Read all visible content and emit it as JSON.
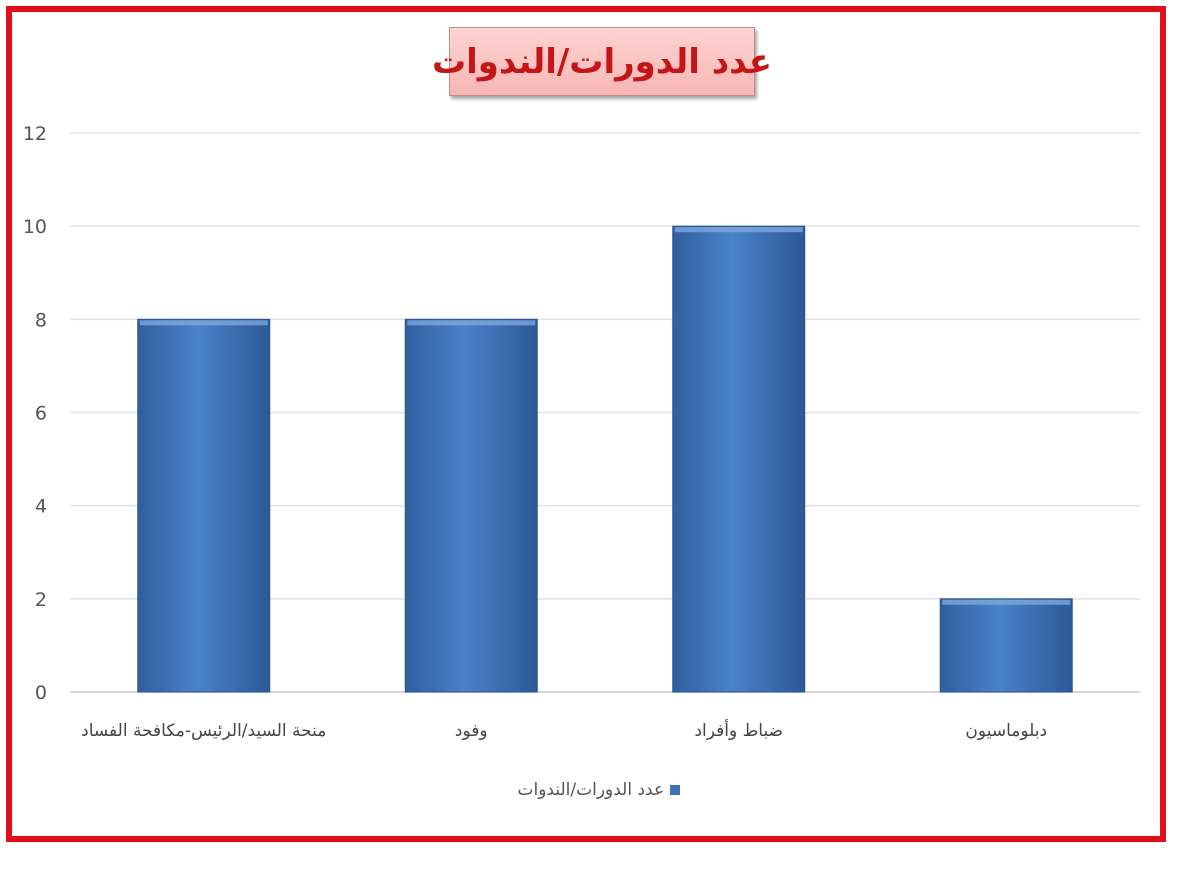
{
  "chart_data": {
    "type": "bar",
    "title": "عدد الدورات/الندوات",
    "categories": [
      "منحة السيد/الرئيس-مكافحة الفساد",
      "وفود",
      "ضباط وأفراد",
      "دبلوماسيون"
    ],
    "series": [
      {
        "name": "عدد الدورات/الندوات",
        "values": [
          8,
          8,
          10,
          2
        ]
      }
    ],
    "ylim": [
      0,
      12
    ],
    "yticks": [
      0,
      2,
      4,
      6,
      8,
      10,
      12
    ],
    "grid": true,
    "legend_position": "bottom",
    "bar_color": "#3d71b8",
    "frame_color": "#e0101a",
    "title_color": "#c41616"
  }
}
